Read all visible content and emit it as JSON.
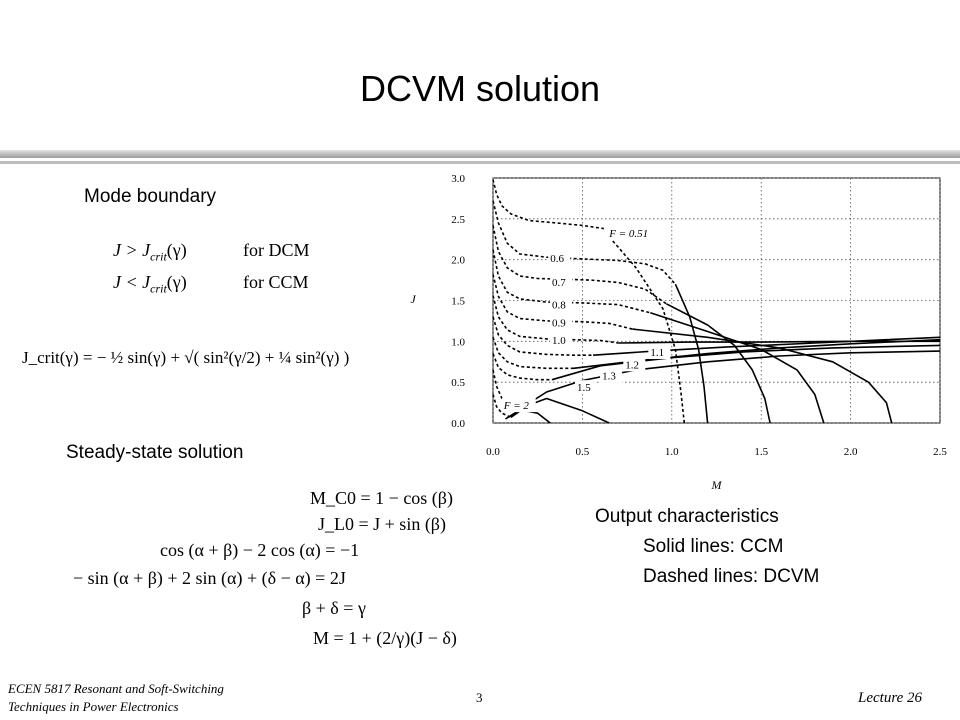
{
  "slide": {
    "title": "DCVM solution",
    "mode_boundary_heading": "Mode boundary",
    "steady_state_heading": "Steady-state solution",
    "output_char": {
      "heading": "Output characteristics",
      "line1": "Solid lines: CCM",
      "line2": "Dashed lines: DCVM"
    },
    "conditions": {
      "dcm_lhs": "J > J",
      "dcm_rhs": "for DCM",
      "ccm_lhs": "J < J",
      "ccm_rhs": "for CCM",
      "sub": "crit",
      "arg": "(γ)"
    },
    "jcrit_formula": "J_crit(γ) = − ½ sin(γ) + √( sin²(γ/2) + ¼ sin²(γ) )",
    "steady_state_equations": [
      "M_C0 = 1 − cos (β)",
      "J_L0 = J + sin (β)",
      "cos (α + β) − 2 cos (α) = −1",
      "− sin (α + β) + 2 sin (α) + (δ − α) = 2J",
      "β + δ = γ",
      "M = 1 + (2/γ)(J − δ)"
    ],
    "footer": {
      "course_line1": "ECEN 5817  Resonant and Soft-Switching",
      "course_line2": "Techniques in Power Electronics",
      "page": "3",
      "lecture": "Lecture 26"
    }
  },
  "chart_data": {
    "type": "line",
    "xlabel": "M",
    "ylabel": "J",
    "xlim": [
      0,
      2.5
    ],
    "ylim": [
      0,
      3.0
    ],
    "x_ticks": [
      "0.0",
      "0.5",
      "1.0",
      "1.5",
      "2.0",
      "2.5"
    ],
    "y_ticks": [
      "0.0",
      "0.5",
      "1.0",
      "1.5",
      "2.0",
      "2.5",
      "3.0"
    ],
    "grid": true,
    "grid_style": "dotted",
    "annotations": [
      "F = 0.51",
      "0.6",
      "0.7",
      "0.8",
      "0.9",
      "1.0",
      "1.1",
      "1.2",
      "1.3",
      "1.5",
      "F = 2"
    ],
    "annotation_points": [
      {
        "label": "F = 0.51",
        "x": 0.65,
        "y": 2.28
      },
      {
        "label": "0.6",
        "x": 0.32,
        "y": 1.97
      },
      {
        "label": "0.7",
        "x": 0.33,
        "y": 1.68
      },
      {
        "label": "0.8",
        "x": 0.33,
        "y": 1.4
      },
      {
        "label": "0.9",
        "x": 0.33,
        "y": 1.18
      },
      {
        "label": "1.0",
        "x": 0.33,
        "y": 0.97
      },
      {
        "label": "1.1",
        "x": 0.88,
        "y": 0.82
      },
      {
        "label": "1.2",
        "x": 0.74,
        "y": 0.67
      },
      {
        "label": "1.3",
        "x": 0.61,
        "y": 0.53
      },
      {
        "label": "1.5",
        "x": 0.47,
        "y": 0.39
      },
      {
        "label": "F = 2",
        "x": 0.06,
        "y": 0.17
      }
    ],
    "series": [
      {
        "style": "dashed",
        "x": [
          0.0,
          0.02,
          0.05,
          0.1,
          0.2,
          0.35,
          0.5,
          0.62
        ],
        "y": [
          2.98,
          2.8,
          2.66,
          2.56,
          2.48,
          2.45,
          2.42,
          2.38
        ]
      },
      {
        "style": "dashed",
        "x": [
          0.0,
          0.03,
          0.08,
          0.15,
          0.3,
          0.5,
          0.7,
          0.85,
          0.95,
          1.02
        ],
        "y": [
          2.72,
          2.45,
          2.2,
          2.07,
          2.03,
          2.01,
          1.99,
          1.95,
          1.87,
          1.7
        ]
      },
      {
        "style": "dashed",
        "x": [
          0.0,
          0.03,
          0.08,
          0.15,
          0.25,
          0.4,
          0.55,
          0.7,
          0.85,
          0.97
        ],
        "y": [
          2.42,
          2.1,
          1.9,
          1.8,
          1.77,
          1.76,
          1.75,
          1.72,
          1.64,
          1.46
        ]
      },
      {
        "style": "dashed",
        "x": [
          0.0,
          0.03,
          0.08,
          0.15,
          0.3,
          0.5,
          0.7,
          0.88
        ],
        "y": [
          2.12,
          1.8,
          1.6,
          1.52,
          1.48,
          1.47,
          1.45,
          1.35
        ]
      },
      {
        "style": "dashed",
        "x": [
          0.0,
          0.03,
          0.08,
          0.15,
          0.3,
          0.5,
          0.65,
          0.78
        ],
        "y": [
          1.82,
          1.55,
          1.36,
          1.28,
          1.25,
          1.24,
          1.22,
          1.15
        ]
      },
      {
        "style": "dashed",
        "x": [
          0.0,
          0.03,
          0.08,
          0.15,
          0.3,
          0.45,
          0.6,
          0.7
        ],
        "y": [
          1.56,
          1.3,
          1.14,
          1.06,
          1.03,
          1.02,
          1.01,
          0.98
        ]
      },
      {
        "style": "dashed",
        "x": [
          0.0,
          0.03,
          0.08,
          0.15,
          0.3,
          0.45,
          0.56
        ],
        "y": [
          1.3,
          1.08,
          0.95,
          0.87,
          0.84,
          0.83,
          0.83
        ]
      },
      {
        "style": "dashed",
        "x": [
          0.0,
          0.03,
          0.08,
          0.15,
          0.3,
          0.45
        ],
        "y": [
          1.05,
          0.86,
          0.75,
          0.69,
          0.67,
          0.67
        ]
      },
      {
        "style": "dashed",
        "x": [
          0.0,
          0.03,
          0.08,
          0.15,
          0.25,
          0.33
        ],
        "y": [
          0.85,
          0.68,
          0.59,
          0.55,
          0.53,
          0.53
        ]
      },
      {
        "style": "dashed",
        "x": [
          0.0,
          0.02,
          0.05,
          0.1,
          0.15
        ],
        "y": [
          0.65,
          0.45,
          0.3,
          0.2,
          0.17
        ]
      },
      {
        "style": "dashed",
        "x": [
          0.0,
          0.02,
          0.05,
          0.1
        ],
        "y": [
          0.35,
          0.2,
          0.12,
          0.07
        ]
      },
      {
        "style": "dashed",
        "x": [
          0.65,
          0.8,
          0.95,
          1.02,
          1.05,
          1.07
        ],
        "y": [
          2.28,
          1.9,
          1.4,
          0.9,
          0.4,
          0.0
        ]
      },
      {
        "style": "solid",
        "x": [
          1.02,
          1.1,
          1.15,
          1.18,
          1.2
        ],
        "y": [
          1.7,
          1.3,
          0.9,
          0.45,
          0.0
        ]
      },
      {
        "style": "solid",
        "x": [
          0.97,
          1.2,
          1.35,
          1.45,
          1.52,
          1.55
        ],
        "y": [
          1.46,
          1.2,
          0.95,
          0.65,
          0.3,
          0.0
        ]
      },
      {
        "style": "solid",
        "x": [
          0.88,
          1.2,
          1.5,
          1.7,
          1.8,
          1.85
        ],
        "y": [
          1.35,
          1.12,
          0.9,
          0.65,
          0.35,
          0.0
        ]
      },
      {
        "style": "solid",
        "x": [
          0.78,
          1.2,
          1.6,
          1.9,
          2.1,
          2.2,
          2.23
        ],
        "y": [
          1.15,
          1.05,
          0.92,
          0.75,
          0.5,
          0.25,
          0.0
        ]
      },
      {
        "style": "solid",
        "x": [
          0.7,
          1.1,
          1.5,
          2.0,
          2.3,
          2.5
        ],
        "y": [
          0.98,
          0.99,
          0.99,
          1.0,
          1.0,
          1.0
        ]
      },
      {
        "style": "solid",
        "x": [
          0.56,
          0.9,
          1.3,
          1.8,
          2.2,
          2.5
        ],
        "y": [
          0.83,
          0.88,
          0.93,
          0.98,
          1.02,
          1.05
        ]
      },
      {
        "style": "solid",
        "x": [
          0.45,
          0.8,
          1.2,
          1.6,
          2.0,
          2.5
        ],
        "y": [
          0.67,
          0.76,
          0.85,
          0.92,
          0.97,
          1.02
        ]
      },
      {
        "style": "solid",
        "x": [
          0.33,
          0.6,
          1.0,
          1.4,
          1.9,
          2.5
        ],
        "y": [
          0.53,
          0.7,
          0.8,
          0.87,
          0.92,
          0.95
        ]
      },
      {
        "style": "solid",
        "x": [
          0.15,
          0.3,
          0.5,
          0.8,
          1.2,
          1.6,
          2.0,
          2.5
        ],
        "y": [
          0.17,
          0.38,
          0.52,
          0.65,
          0.75,
          0.82,
          0.86,
          0.88
        ]
      },
      {
        "style": "solid",
        "x": [
          0.1,
          0.2,
          0.3,
          0.5,
          0.65
        ],
        "y": [
          0.07,
          0.22,
          0.3,
          0.15,
          0.0
        ]
      },
      {
        "style": "solid",
        "x": [
          0.07,
          0.15,
          0.25,
          0.32
        ],
        "y": [
          0.05,
          0.16,
          0.12,
          0.0
        ]
      }
    ]
  }
}
